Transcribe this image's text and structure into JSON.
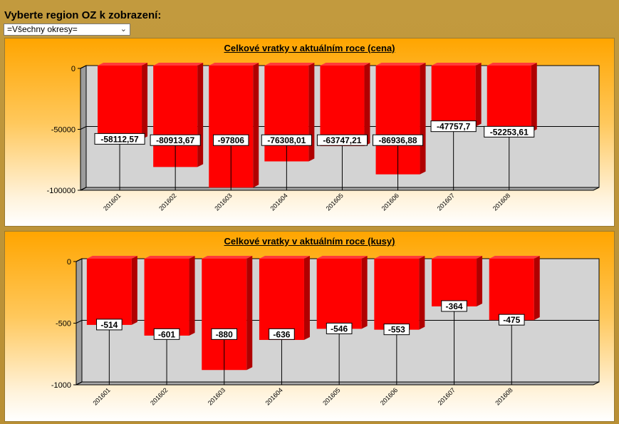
{
  "header": {
    "label": "Vyberte region OZ k zobrazení:"
  },
  "region_select": {
    "value": "=Všechny okresy="
  },
  "colors": {
    "bar": "#ff0000",
    "bar_side": "#b00000",
    "bar_top": "#ff3a3a",
    "plot_bg": "#d3d3d3",
    "wall": "#9c9c9c",
    "floor": "#a8a8a8"
  },
  "chart_data": [
    {
      "type": "bar",
      "title": "Celkové vratky v aktuálním roce (cena)",
      "categories": [
        "201601",
        "201602",
        "201603",
        "201604",
        "201605",
        "201606",
        "201607",
        "201608"
      ],
      "values": [
        -58112.57,
        -80913.67,
        -97806,
        -76308.01,
        -63747.21,
        -86936.88,
        -47757.7,
        -52253.61
      ],
      "labels": [
        "-58112,57",
        "-80913,67",
        "-97806",
        "-76308,01",
        "-63747,21",
        "-86936,88",
        "-47757,7",
        "-52253,61"
      ],
      "yticks": [
        0,
        -50000,
        -100000
      ],
      "ytick_labels": [
        "0",
        "-50000",
        "-100000"
      ],
      "ylim": [
        -100000,
        0
      ],
      "grid": true
    },
    {
      "type": "bar",
      "title": "Celkové vratky v aktuálním roce (kusy)",
      "categories": [
        "201601",
        "201602",
        "201603",
        "201604",
        "201605",
        "201606",
        "201607",
        "201608"
      ],
      "values": [
        -514,
        -601,
        -880,
        -636,
        -546,
        -553,
        -364,
        -475
      ],
      "labels": [
        "-514",
        "-601",
        "-880",
        "-636",
        "-546",
        "-553",
        "-364",
        "-475"
      ],
      "yticks": [
        0,
        -500,
        -1000
      ],
      "ytick_labels": [
        "0",
        "-500",
        "-1000"
      ],
      "ylim": [
        -1000,
        0
      ],
      "grid": true
    }
  ]
}
